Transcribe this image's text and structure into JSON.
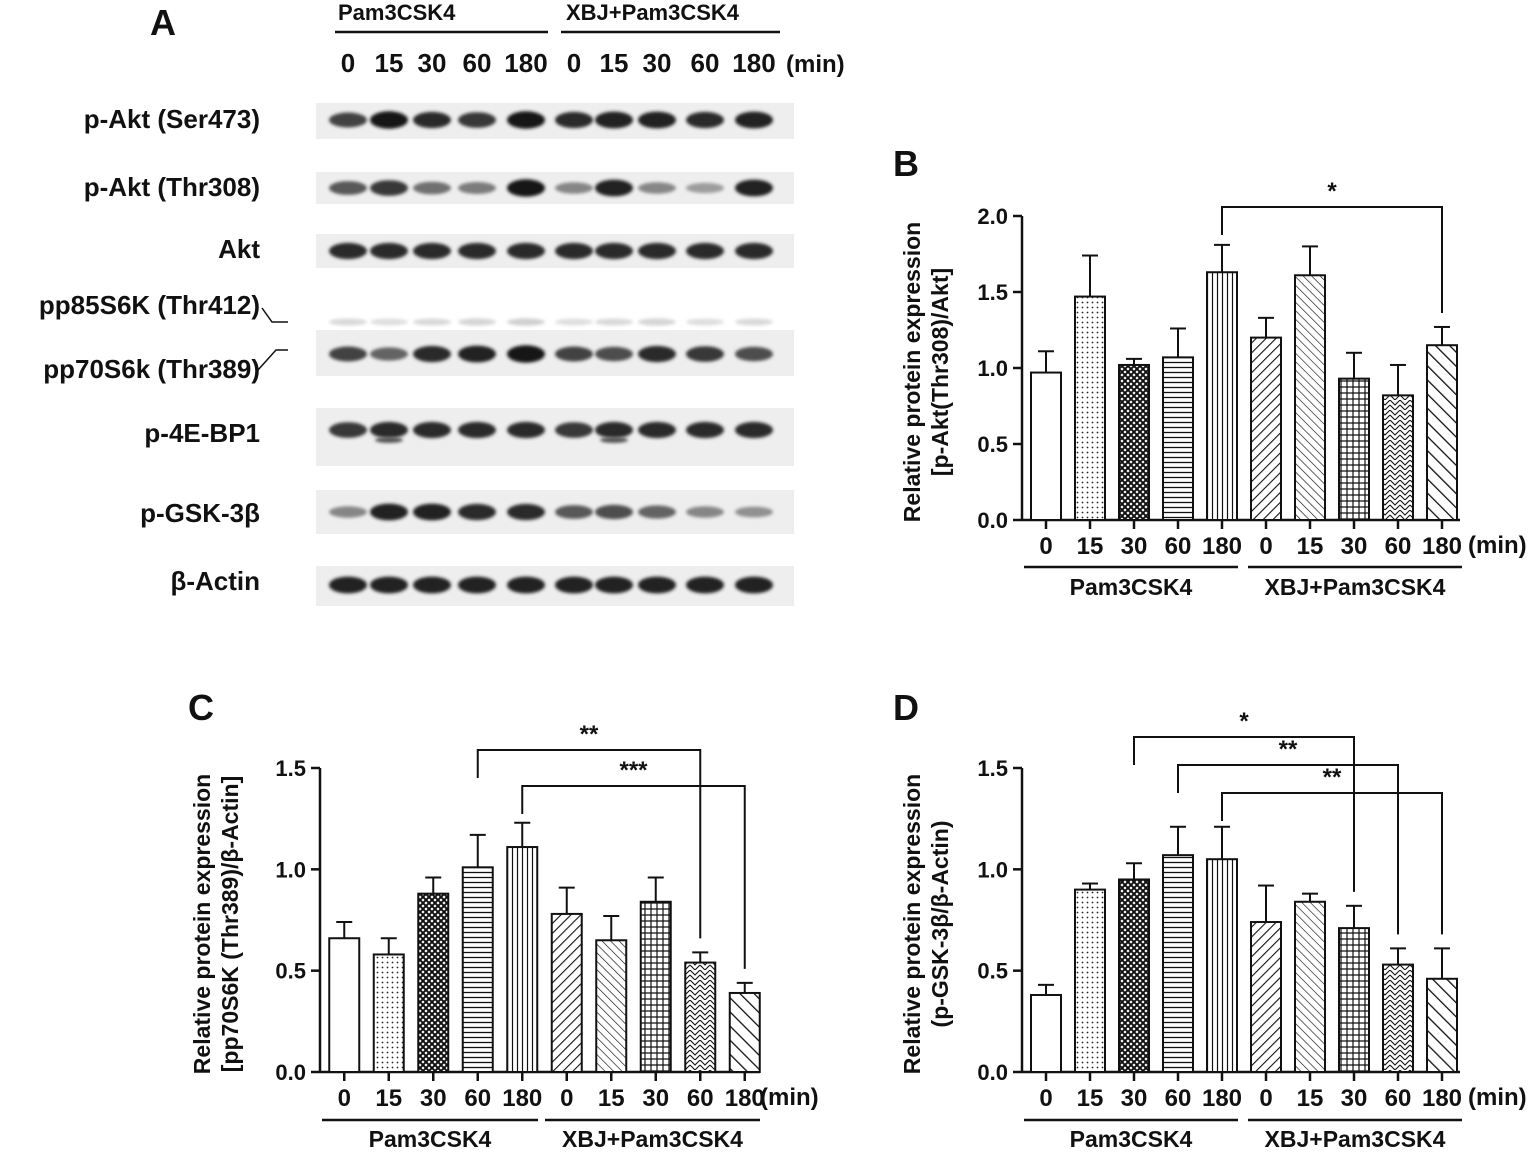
{
  "blot": {
    "panel_label": "A",
    "groups": [
      "Pam3CSK4",
      "XBJ+Pam3CSK4"
    ],
    "time_points": [
      "0",
      "15",
      "30",
      "60",
      "180",
      "0",
      "15",
      "30",
      "60",
      "180"
    ],
    "unit": "(min)",
    "rows": [
      {
        "label": "p-Akt (Ser473)",
        "intensity": [
          0.75,
          0.95,
          0.85,
          0.8,
          0.95,
          0.85,
          0.9,
          0.9,
          0.85,
          0.9
        ]
      },
      {
        "label": "p-Akt (Thr308)",
        "intensity": [
          0.65,
          0.8,
          0.55,
          0.5,
          0.95,
          0.45,
          0.9,
          0.45,
          0.35,
          0.9
        ]
      },
      {
        "label": "Akt",
        "intensity": [
          0.85,
          0.85,
          0.85,
          0.85,
          0.85,
          0.85,
          0.85,
          0.85,
          0.85,
          0.85
        ]
      },
      {
        "label": "pp85S6K (Thr412)",
        "intensity": [
          0.08,
          0.06,
          0.08,
          0.1,
          0.12,
          0.06,
          0.08,
          0.1,
          0.06,
          0.08
        ]
      },
      {
        "label": "pp70S6k (Thr389)",
        "intensity": [
          0.75,
          0.6,
          0.85,
          0.9,
          0.95,
          0.75,
          0.7,
          0.85,
          0.8,
          0.7
        ]
      },
      {
        "label": "p-4E-BP1",
        "intensity": [
          0.8,
          0.85,
          0.85,
          0.85,
          0.85,
          0.8,
          0.85,
          0.85,
          0.85,
          0.85
        ]
      },
      {
        "label": "p-GSK-3β",
        "intensity": [
          0.45,
          0.9,
          0.9,
          0.85,
          0.85,
          0.65,
          0.7,
          0.6,
          0.45,
          0.4
        ]
      },
      {
        "label": "β-Actin",
        "intensity": [
          0.9,
          0.9,
          0.9,
          0.9,
          0.9,
          0.9,
          0.9,
          0.9,
          0.9,
          0.9
        ]
      }
    ]
  },
  "chart_data": [
    {
      "panel": "B",
      "type": "bar",
      "ylabel_line1": "Relative protein expression",
      "ylabel_line2": "[p-Akt(Thr308)/Akt]",
      "ylim": [
        0,
        2.0
      ],
      "yticks": [
        "0.0",
        "0.5",
        "1.0",
        "1.5",
        "2.0"
      ],
      "categories": [
        "0",
        "15",
        "30",
        "60",
        "180",
        "0",
        "15",
        "30",
        "60",
        "180"
      ],
      "unit": "(min)",
      "groups": [
        "Pam3CSK4",
        "XBJ+Pam3CSK4"
      ],
      "values": [
        0.97,
        1.47,
        1.02,
        1.07,
        1.63,
        1.2,
        1.61,
        0.93,
        0.82,
        1.15
      ],
      "errors": [
        0.14,
        0.27,
        0.04,
        0.19,
        0.18,
        0.13,
        0.19,
        0.17,
        0.2,
        0.12
      ],
      "patterns": [
        "empty",
        "dots",
        "crosshatch",
        "hlines",
        "vlines",
        "diag",
        "rdiag",
        "grid",
        "zigzag",
        "bigdiag"
      ],
      "significance": [
        {
          "from": 4,
          "to": 9,
          "label": "*"
        }
      ]
    },
    {
      "panel": "C",
      "type": "bar",
      "ylabel_line1": "Relative protein expression",
      "ylabel_line2": "[pp70S6K (Thr389)/β-Actin]",
      "ylim": [
        0,
        1.5
      ],
      "yticks": [
        "0.0",
        "0.5",
        "1.0",
        "1.5"
      ],
      "categories": [
        "0",
        "15",
        "30",
        "60",
        "180",
        "0",
        "15",
        "30",
        "60",
        "180"
      ],
      "unit": "(min)",
      "groups": [
        "Pam3CSK4",
        "XBJ+Pam3CSK4"
      ],
      "values": [
        0.66,
        0.58,
        0.88,
        1.01,
        1.11,
        0.78,
        0.65,
        0.84,
        0.54,
        0.39
      ],
      "errors": [
        0.08,
        0.08,
        0.08,
        0.16,
        0.12,
        0.13,
        0.12,
        0.12,
        0.05,
        0.05
      ],
      "patterns": [
        "empty",
        "dots",
        "crosshatch",
        "hlines",
        "vlines",
        "diag",
        "rdiag",
        "grid",
        "zigzag",
        "bigdiag"
      ],
      "significance": [
        {
          "from": 3,
          "to": 8,
          "label": "**"
        },
        {
          "from": 4,
          "to": 9,
          "label": "***"
        }
      ]
    },
    {
      "panel": "D",
      "type": "bar",
      "ylabel_line1": "Relative protein expression",
      "ylabel_line2": "(p-GSK-3β/β-Actin)",
      "ylim": [
        0,
        1.5
      ],
      "yticks": [
        "0.0",
        "0.5",
        "1.0",
        "1.5"
      ],
      "categories": [
        "0",
        "15",
        "30",
        "60",
        "180",
        "0",
        "15",
        "30",
        "60",
        "180"
      ],
      "unit": "(min)",
      "groups": [
        "Pam3CSK4",
        "XBJ+Pam3CSK4"
      ],
      "values": [
        0.38,
        0.9,
        0.95,
        1.07,
        1.05,
        0.74,
        0.84,
        0.71,
        0.53,
        0.46
      ],
      "errors": [
        0.05,
        0.03,
        0.08,
        0.14,
        0.16,
        0.18,
        0.04,
        0.11,
        0.08,
        0.15
      ],
      "patterns": [
        "empty",
        "dots",
        "crosshatch",
        "hlines",
        "vlines",
        "diag",
        "rdiag",
        "grid",
        "zigzag",
        "bigdiag"
      ],
      "significance": [
        {
          "from": 2,
          "to": 7,
          "label": "*"
        },
        {
          "from": 3,
          "to": 8,
          "label": "**"
        },
        {
          "from": 4,
          "to": 9,
          "label": "**"
        }
      ]
    }
  ]
}
